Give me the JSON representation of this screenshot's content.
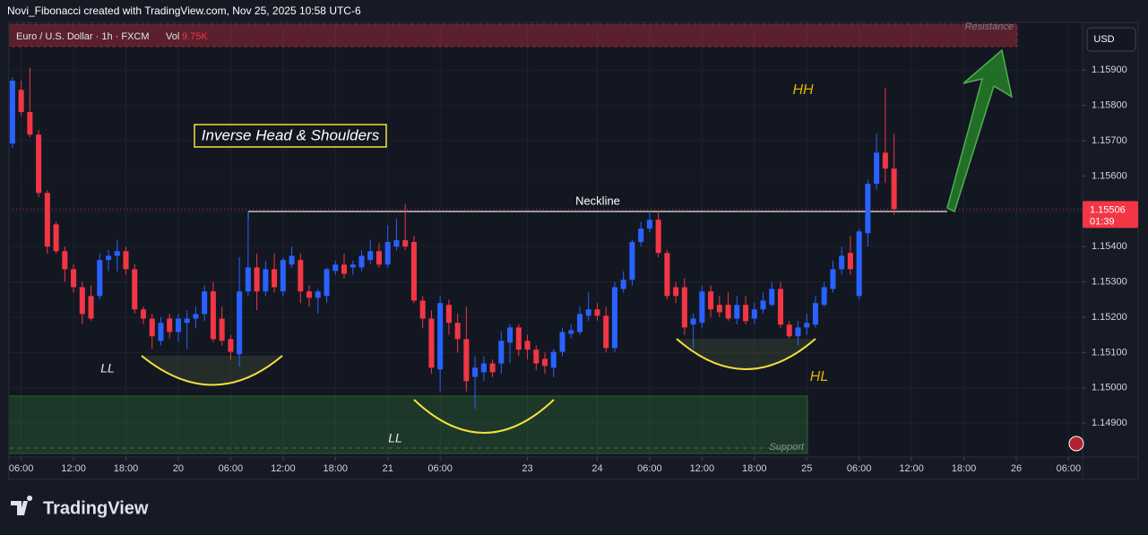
{
  "header": {
    "credit": "Novi_Fibonacci created with TradingView.com, Nov 25, 2025 10:58 UTC-6",
    "symbol": "Euro / U.S. Dollar · 1h · FXCM",
    "vol_label": "Vol",
    "vol_value": "9.75K",
    "currency": "USD",
    "brand": "TradingView"
  },
  "annotations": {
    "pattern": "Inverse Head & Shoulders",
    "neckline": "Neckline",
    "hh": "HH",
    "hl": "HL",
    "ll_left": "LL",
    "ll_head": "LL",
    "resistance": "Resistance",
    "support": "Support"
  },
  "chart_data": {
    "type": "candlestick",
    "up_color": "#2962ff",
    "down_color": "#f23645",
    "open": [
      1.15692,
      1.15844,
      1.15781,
      1.15717,
      1.15552,
      1.15463,
      1.15387,
      1.15336,
      1.15285,
      1.1526,
      1.1526,
      1.15362,
      1.15374,
      1.15387,
      1.15336,
      1.15222,
      1.15196,
      1.15133,
      1.15196,
      1.15158,
      1.15184,
      1.15196,
      1.15209,
      1.15273,
      1.15196,
      1.15138,
      1.15095,
      1.15273,
      1.15341,
      1.15273,
      1.15336,
      1.15273,
      1.15349,
      1.15362,
      1.15273,
      1.15255,
      1.1526,
      1.15331,
      1.15349,
      1.15341,
      1.15341,
      1.15362,
      1.15387,
      1.15349,
      1.154,
      1.15418,
      1.15413,
      1.15247,
      1.15196,
      1.15052,
      1.15235,
      1.15184,
      1.15138,
      1.15031,
      1.15044,
      1.15069,
      1.15069,
      1.15128,
      1.15171,
      1.15133,
      1.15108,
      1.15082,
      1.15057,
      1.15102,
      1.15153,
      1.15158,
      1.15204,
      1.15222,
      1.15204,
      1.15113,
      1.1528,
      1.15306,
      1.15413,
      1.15451,
      1.15476,
      1.15382,
      1.15285,
      1.15285,
      1.15179,
      1.15184,
      1.15273,
      1.15235,
      1.15235,
      1.15196,
      1.15235,
      1.15196,
      1.15222,
      1.15235,
      1.1528,
      1.15179,
      1.15146,
      1.15171,
      1.15179,
      1.15235,
      1.1528,
      1.15336,
      1.15382,
      1.1526,
      1.15438,
      1.15578,
      1.15666,
      1.15621
    ],
    "high": [
      1.1588,
      1.1587,
      1.15907,
      1.1573,
      1.1556,
      1.1547,
      1.154,
      1.1535,
      1.153,
      1.1529,
      1.1538,
      1.1539,
      1.1542,
      1.154,
      1.1535,
      1.1523,
      1.1521,
      1.152,
      1.1521,
      1.1521,
      1.1522,
      1.1523,
      1.1529,
      1.153,
      1.1523,
      1.1515,
      1.1537,
      1.155,
      1.1538,
      1.1536,
      1.1538,
      1.1537,
      1.154,
      1.1538,
      1.1529,
      1.1528,
      1.1534,
      1.1536,
      1.1538,
      1.1536,
      1.1539,
      1.1542,
      1.1541,
      1.1546,
      1.1548,
      1.1552,
      1.1543,
      1.1526,
      1.1522,
      1.1526,
      1.1525,
      1.1521,
      1.1523,
      1.1509,
      1.1509,
      1.1508,
      1.1516,
      1.1518,
      1.1518,
      1.1515,
      1.1512,
      1.151,
      1.1511,
      1.1517,
      1.1518,
      1.1523,
      1.1527,
      1.1524,
      1.1523,
      1.153,
      1.1533,
      1.1542,
      1.1547,
      1.155,
      1.155,
      1.1539,
      1.153,
      1.1531,
      1.1521,
      1.1529,
      1.1529,
      1.1526,
      1.1527,
      1.1526,
      1.1526,
      1.1524,
      1.1527,
      1.153,
      1.153,
      1.1519,
      1.1519,
      1.1521,
      1.1526,
      1.153,
      1.1536,
      1.154,
      1.1543,
      1.1545,
      1.1559,
      1.1572,
      1.1585,
      1.1572
    ],
    "low": [
      1.1568,
      1.1577,
      1.1571,
      1.1554,
      1.1538,
      1.1538,
      1.153,
      1.1527,
      1.1518,
      1.1519,
      1.1525,
      1.1533,
      1.1533,
      1.1532,
      1.1521,
      1.1518,
      1.1511,
      1.1512,
      1.1514,
      1.1513,
      1.1511,
      1.1517,
      1.1519,
      1.1513,
      1.1512,
      1.1508,
      1.1506,
      1.1526,
      1.1522,
      1.1526,
      1.1527,
      1.1526,
      1.1534,
      1.1524,
      1.1523,
      1.1521,
      1.1524,
      1.1532,
      1.1531,
      1.1532,
      1.1533,
      1.1535,
      1.1534,
      1.1534,
      1.1539,
      1.1539,
      1.1524,
      1.1517,
      1.1504,
      1.1499,
      1.1515,
      1.151,
      1.1499,
      1.1494,
      1.1502,
      1.1503,
      1.1504,
      1.1507,
      1.1509,
      1.1508,
      1.1505,
      1.1504,
      1.1503,
      1.1509,
      1.1514,
      1.1515,
      1.1519,
      1.1519,
      1.151,
      1.151,
      1.1527,
      1.1529,
      1.154,
      1.1544,
      1.1537,
      1.1525,
      1.1524,
      1.1515,
      1.1511,
      1.1517,
      1.152,
      1.152,
      1.1519,
      1.1518,
      1.1518,
      1.1518,
      1.1521,
      1.1523,
      1.1517,
      1.1514,
      1.1512,
      1.1515,
      1.1517,
      1.1523,
      1.1527,
      1.1532,
      1.1532,
      1.1525,
      1.154,
      1.1556,
      1.1558,
      1.1549
    ],
    "close": [
      1.1587,
      1.15781,
      1.15717,
      1.15552,
      1.154,
      1.15387,
      1.15336,
      1.15285,
      1.15209,
      1.15196,
      1.15362,
      1.15374,
      1.15387,
      1.15336,
      1.15222,
      1.15196,
      1.15146,
      1.15184,
      1.15158,
      1.15196,
      1.15196,
      1.15209,
      1.15273,
      1.15138,
      1.15133,
      1.15102,
      1.15273,
      1.15341,
      1.15273,
      1.15336,
      1.15285,
      1.15362,
      1.15374,
      1.15273,
      1.15255,
      1.15273,
      1.15336,
      1.15349,
      1.15323,
      1.15349,
      1.15374,
      1.15387,
      1.15349,
      1.15413,
      1.15418,
      1.154,
      1.15247,
      1.15196,
      1.15057,
      1.1524,
      1.15184,
      1.15138,
      1.15019,
      1.15057,
      1.15069,
      1.15044,
      1.15133,
      1.15171,
      1.15108,
      1.15108,
      1.15069,
      1.15062,
      1.15102,
      1.15158,
      1.15163,
      1.15209,
      1.15222,
      1.15204,
      1.15113,
      1.15285,
      1.15306,
      1.15413,
      1.15451,
      1.15476,
      1.15382,
      1.1526,
      1.1526,
      1.15171,
      1.15196,
      1.15273,
      1.15222,
      1.15214,
      1.15196,
      1.15235,
      1.15189,
      1.15222,
      1.15247,
      1.1528,
      1.15179,
      1.15146,
      1.15171,
      1.15184,
      1.1524,
      1.15285,
      1.15336,
      1.15374,
      1.15336,
      1.15443,
      1.15578,
      1.15666,
      1.15621,
      1.15506
    ],
    "last_price_label": "1.15506",
    "countdown": "01:39",
    "xlim": [
      -0.4,
      122.6
    ],
    "ylim": [
      1.14809,
      1.16035
    ],
    "yticks": [
      {
        "value": 1.159,
        "label": "1.15900"
      },
      {
        "value": 1.158,
        "label": "1.15800"
      },
      {
        "value": 1.157,
        "label": "1.15700"
      },
      {
        "value": 1.156,
        "label": "1.15600"
      },
      {
        "value": 1.155,
        "label": "1.15500"
      },
      {
        "value": 1.154,
        "label": "1.15400"
      },
      {
        "value": 1.153,
        "label": "1.15300"
      },
      {
        "value": 1.152,
        "label": "1.15200"
      },
      {
        "value": 1.151,
        "label": "1.15100"
      },
      {
        "value": 1.15,
        "label": "1.15000"
      },
      {
        "value": 1.149,
        "label": "1.14900"
      }
    ],
    "xticks": [
      {
        "value": 1,
        "label": "06:00"
      },
      {
        "value": 7,
        "label": "12:00"
      },
      {
        "value": 13,
        "label": "18:00"
      },
      {
        "value": 19,
        "label": "20"
      },
      {
        "value": 25,
        "label": "06:00"
      },
      {
        "value": 31,
        "label": "12:00"
      },
      {
        "value": 37,
        "label": "18:00"
      },
      {
        "value": 43,
        "label": "21"
      },
      {
        "value": 49,
        "label": "06:00"
      },
      {
        "value": 59,
        "label": "23"
      },
      {
        "value": 67,
        "label": "24"
      },
      {
        "value": 73,
        "label": "06:00"
      },
      {
        "value": 79,
        "label": "12:00"
      },
      {
        "value": 85,
        "label": "18:00"
      },
      {
        "value": 91,
        "label": "25"
      },
      {
        "value": 97,
        "label": "06:00"
      },
      {
        "value": 103,
        "label": "12:00"
      },
      {
        "value": 109,
        "label": "18:00"
      },
      {
        "value": 115,
        "label": "26"
      },
      {
        "value": 121,
        "label": "06:00"
      }
    ],
    "grid": true
  }
}
